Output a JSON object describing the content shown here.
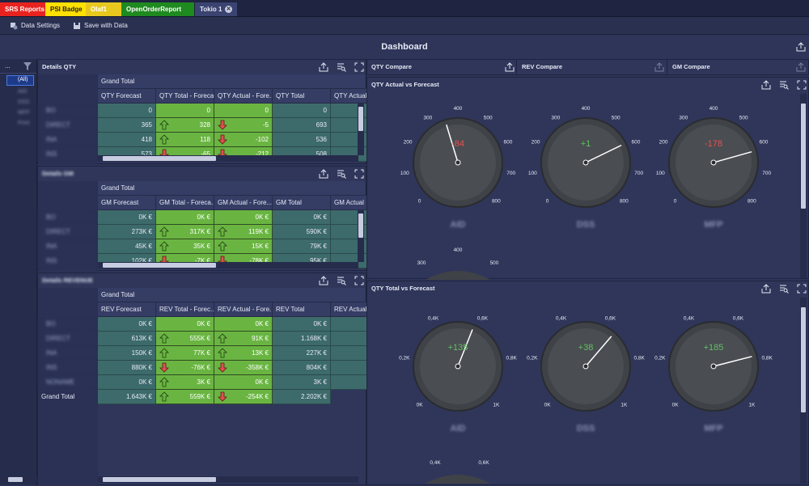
{
  "tabs": [
    {
      "label": "SRS Reports",
      "color": "#e8231f"
    },
    {
      "label": "PSI Badge",
      "color": "#ffe000"
    },
    {
      "label": "Olaf1",
      "color": "#e8c81e"
    },
    {
      "label": "OpenOrderReport",
      "color": "#1f8a1f"
    },
    {
      "label": "Tokio 1",
      "color": "#3b4370",
      "close": "✕"
    }
  ],
  "toolbar": {
    "data_settings": "Data Settings",
    "save_with_data": "Save with Data"
  },
  "dashboard": {
    "title": "Dashboard"
  },
  "filter": {
    "items": [
      "(All)",
      "AID",
      "DSS",
      "MFP",
      "Print"
    ]
  },
  "qty_panel": {
    "title": "Details QTY",
    "grand_total": "Grand Total",
    "columns": [
      "QTY Forecast",
      "QTY Total - Foreca...",
      "QTY Actual - Fore...",
      "QTY Total",
      "QTY Actual"
    ],
    "rows": [
      {
        "label": "BO",
        "v": [
          "0",
          "0",
          "0",
          "0"
        ],
        "a1": "none",
        "a2": "none"
      },
      {
        "label": "DIRECT",
        "v": [
          "365",
          "328",
          "-5",
          "693"
        ],
        "a1": "up",
        "a2": "down"
      },
      {
        "label": "INA",
        "v": [
          "418",
          "118",
          "-102",
          "536"
        ],
        "a1": "up",
        "a2": "down"
      },
      {
        "label": "INS",
        "v": [
          "573",
          "-65",
          "-212",
          "508"
        ],
        "a1": "down",
        "a2": "down"
      }
    ]
  },
  "gm_panel": {
    "title": "Details GM",
    "grand_total": "Grand Total",
    "columns": [
      "GM Forecast",
      "GM Total - Foreca...",
      "GM Actual - Fore...",
      "GM Total",
      "GM Actual"
    ],
    "rows": [
      {
        "label": "BO",
        "v": [
          "0K €",
          "0K €",
          "0K €",
          "0K €"
        ],
        "a1": "none",
        "a2": "none"
      },
      {
        "label": "DIRECT",
        "v": [
          "273K €",
          "317K €",
          "119K €",
          "590K €"
        ],
        "a1": "up",
        "a2": "up"
      },
      {
        "label": "INA",
        "v": [
          "45K €",
          "35K €",
          "15K €",
          "79K €"
        ],
        "a1": "up",
        "a2": "up"
      },
      {
        "label": "INS",
        "v": [
          "102K €",
          "-7K €",
          "-78K €",
          "95K €"
        ],
        "a1": "down",
        "a2": "down"
      }
    ]
  },
  "rev_panel": {
    "title": "Details REVENUE",
    "grand_total": "Grand Total",
    "columns": [
      "REV Forecast",
      "REV Total - Forec...",
      "REV Actual - Fore...",
      "REV Total",
      "REV Actual"
    ],
    "rows": [
      {
        "label": "BO",
        "v": [
          "0K €",
          "0K €",
          "0K €",
          "0K €"
        ],
        "a1": "none",
        "a2": "none"
      },
      {
        "label": "DIRECT",
        "v": [
          "613K €",
          "555K €",
          "91K €",
          "1.168K €"
        ],
        "a1": "up",
        "a2": "up"
      },
      {
        "label": "INA",
        "v": [
          "150K €",
          "77K €",
          "13K €",
          "227K €"
        ],
        "a1": "up",
        "a2": "up"
      },
      {
        "label": "INS",
        "v": [
          "880K €",
          "-76K €",
          "-358K €",
          "804K €"
        ],
        "a1": "down",
        "a2": "down"
      },
      {
        "label": "NONAME",
        "v": [
          "0K €",
          "3K €",
          "0K €",
          "3K €"
        ],
        "a1": "up",
        "a2": "none"
      }
    ],
    "total_row": {
      "label": "Grand Total",
      "v": [
        "1.643K €",
        "559K €",
        "-254K €",
        "2.202K €"
      ],
      "a1": "up",
      "a2": "down"
    }
  },
  "compare_tabs": [
    "QTY Compare",
    "REV Compare",
    "GM Compare"
  ],
  "gauges1": {
    "title": "QTY Actual vs Forecast",
    "ticks": [
      "0",
      "100",
      "200",
      "300",
      "400",
      "500",
      "600",
      "700",
      "800"
    ],
    "items": [
      {
        "name": "AID",
        "value": "-84",
        "color": "#e85050",
        "needle": 350
      },
      {
        "name": "DSS",
        "value": "+1",
        "color": "#60c060",
        "needle": 590
      },
      {
        "name": "MFP",
        "value": "-178",
        "color": "#e85050",
        "needle": 620
      }
    ]
  },
  "gauges2": {
    "title": "QTY Total vs Forecast",
    "ticks": [
      "0K",
      "0,2K",
      "0,4K",
      "0,6K",
      "0,8K",
      "1K"
    ],
    "items": [
      {
        "name": "AID",
        "value": "+135",
        "color": "#60c060",
        "needle": 0.58
      },
      {
        "name": "DSS",
        "value": "+38",
        "color": "#60c060",
        "needle": 0.65
      },
      {
        "name": "MFP",
        "value": "+185",
        "color": "#60c060",
        "needle": 0.78
      }
    ]
  },
  "icons": {
    "export": "export-icon",
    "drill": "drill-icon",
    "maximize": "maximize-icon",
    "filter": "filter-icon"
  }
}
